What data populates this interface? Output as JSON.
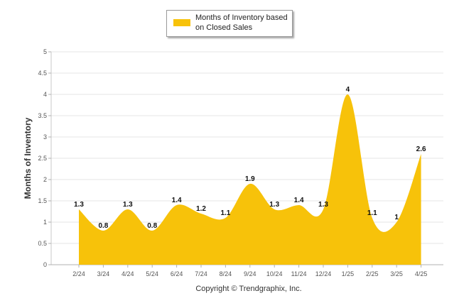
{
  "chart_data": {
    "type": "area",
    "categories": [
      "2/24",
      "3/24",
      "4/24",
      "5/24",
      "6/24",
      "7/24",
      "8/24",
      "9/24",
      "10/24",
      "11/24",
      "12/24",
      "1/25",
      "2/25",
      "3/25",
      "4/25"
    ],
    "series": [
      {
        "name": "Months of Inventory based on Closed Sales",
        "values": [
          1.3,
          0.8,
          1.3,
          0.8,
          1.4,
          1.2,
          1.1,
          1.9,
          1.3,
          1.4,
          1.3,
          4,
          1.1,
          1,
          2.6
        ],
        "color": "#f7c20a"
      }
    ],
    "data_labels": [
      "1.3",
      "0.8",
      "1.3",
      "0.8",
      "1.4",
      "1.2",
      "1.1",
      "1.9",
      "1.3",
      "1.4",
      "1.3",
      "4",
      "1.1",
      "1",
      "2.6"
    ],
    "ylabel": "Months of Inventory",
    "ylim": [
      0,
      5
    ],
    "yticks": [
      "0",
      "0.5",
      "1",
      "1.5",
      "2",
      "2.5",
      "3",
      "3.5",
      "4",
      "4.5",
      "5"
    ],
    "grid": true,
    "legend_position": "top-center"
  },
  "legend": {
    "label": "Months of Inventory based on Closed Sales",
    "color": "#f7c20a"
  },
  "footer": {
    "copyright": "Copyright © Trendgraphix, Inc."
  }
}
